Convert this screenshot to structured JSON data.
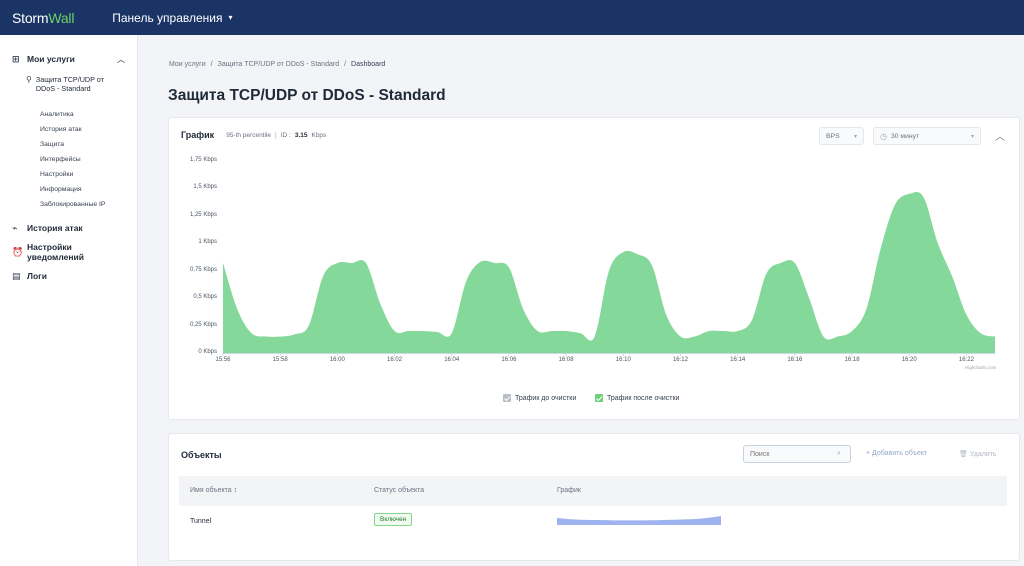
{
  "header": {
    "logo_storm": "Storm",
    "logo_wall": "Wall",
    "panel_label": "Панель управления"
  },
  "sidebar": {
    "my_services": "Мои услуги",
    "service_name": "Защита TCP/UDP от DDoS - Standard",
    "sub_items": [
      "Аналитика",
      "История атак",
      "Защита",
      "Интерфейсы",
      "Настройки",
      "Информация",
      "Заблокированные IP"
    ],
    "attack_history": "История атак",
    "notification_settings": "Настройки уведомлений",
    "logs": "Логи"
  },
  "breadcrumb": {
    "items": [
      "Мои услуги",
      "Защита TCP/UDP от DDoS - Standard",
      "Dashboard"
    ]
  },
  "page": {
    "title": "Защита TCP/UDP от DDoS - Standard"
  },
  "chart_card": {
    "title": "График",
    "percentile_label": "95-th percentile",
    "id_label": "ID :",
    "id_value": "3.15",
    "id_unit": "Kbps",
    "unit_select": "BPS",
    "range_select": "30 минут",
    "credits": "Highcharts.com",
    "legend": [
      {
        "label": "Трафик до очистки",
        "color": "#b8bec7"
      },
      {
        "label": "Трафик после очистки",
        "color": "#6fd07c"
      }
    ]
  },
  "chart_data": {
    "type": "area",
    "ylabel": "",
    "y_ticks": [
      "0 Kbps",
      "0,25 Kbps",
      "0,5 Kbps",
      "0,75 Kbps",
      "1 Kbps",
      "1,25 Kbps",
      "1,5 Kbps",
      "1,75 Kbps"
    ],
    "ylim": [
      0,
      1.75
    ],
    "x_ticks": [
      "15:56",
      "15:58",
      "16:00",
      "16:02",
      "16:04",
      "16:06",
      "16:08",
      "16:10",
      "16:12",
      "16:14",
      "16:16",
      "16:18",
      "16:20",
      "16:22"
    ],
    "xlim": [
      "15:56",
      "16:23"
    ],
    "grid": false,
    "legend_position": "bottom",
    "series": [
      {
        "name": "Трафик после очистки",
        "color": "#84d99a",
        "x": [
          "15:56",
          "15:56:30",
          "15:57",
          "15:57:30",
          "15:58",
          "15:58:30",
          "15:59",
          "15:59:30",
          "16:00",
          "16:00:30",
          "16:01",
          "16:01:30",
          "16:02",
          "16:02:30",
          "16:03",
          "16:03:30",
          "16:04",
          "16:04:30",
          "16:05",
          "16:05:30",
          "16:06",
          "16:06:30",
          "16:07",
          "16:07:30",
          "16:08",
          "16:08:30",
          "16:09",
          "16:09:30",
          "16:10",
          "16:10:30",
          "16:11",
          "16:11:30",
          "16:12",
          "16:12:30",
          "16:13",
          "16:13:30",
          "16:14",
          "16:14:30",
          "16:15",
          "16:15:30",
          "16:16",
          "16:16:30",
          "16:17",
          "16:17:30",
          "16:18",
          "16:18:30",
          "16:19",
          "16:19:30",
          "16:20",
          "16:20:30",
          "16:21",
          "16:21:30",
          "16:22",
          "16:22:30",
          "16:23"
        ],
        "values": [
          0.82,
          0.4,
          0.18,
          0.15,
          0.15,
          0.17,
          0.25,
          0.7,
          0.82,
          0.82,
          0.82,
          0.45,
          0.2,
          0.2,
          0.2,
          0.19,
          0.18,
          0.65,
          0.83,
          0.82,
          0.78,
          0.4,
          0.2,
          0.2,
          0.2,
          0.18,
          0.15,
          0.75,
          0.92,
          0.9,
          0.8,
          0.35,
          0.15,
          0.15,
          0.2,
          0.2,
          0.2,
          0.3,
          0.72,
          0.82,
          0.82,
          0.5,
          0.15,
          0.15,
          0.2,
          0.4,
          0.95,
          1.35,
          1.45,
          1.42,
          1.0,
          0.7,
          0.35,
          0.18,
          0.15
        ]
      }
    ]
  },
  "objects_card": {
    "title": "Объекты",
    "search_placeholder": "Поиск",
    "add_label": "Добавить объект",
    "delete_label": "Удалить",
    "columns": [
      "Имя объекта",
      "Статус объекта",
      "График"
    ],
    "rows": [
      {
        "name": "Tunnel",
        "status": "Включен"
      }
    ]
  }
}
